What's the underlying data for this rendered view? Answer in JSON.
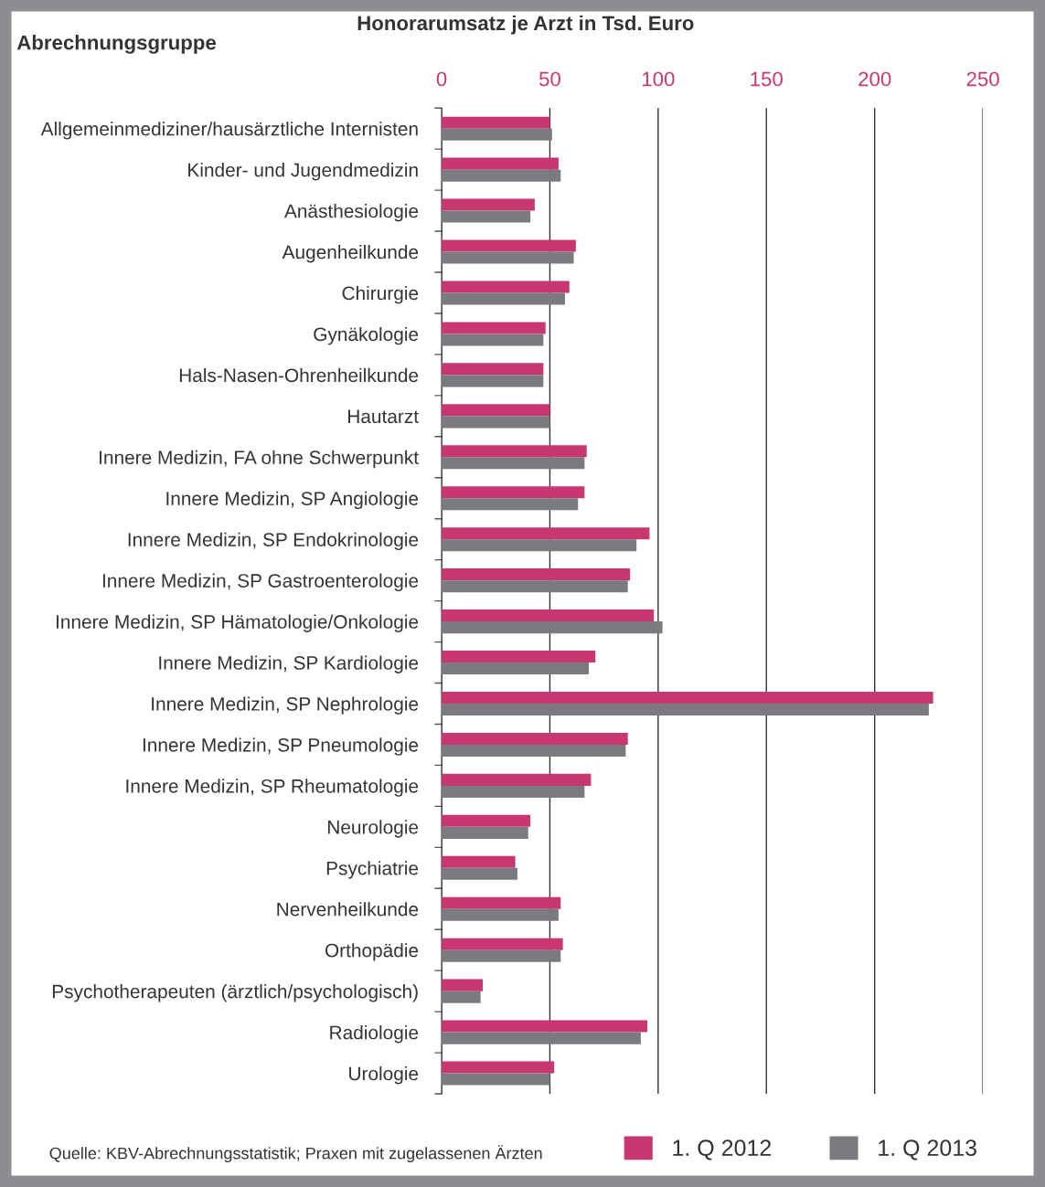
{
  "chart_data": {
    "type": "bar",
    "orientation": "horizontal",
    "xlabel": "Honorarumsatz je Arzt in Tsd. Euro",
    "ylabel": "Abrechnungsgruppe",
    "categories": [
      "Allgemeinmediziner/hausärztliche Internisten",
      "Kinder- und Jugendmedizin",
      "Anästhesiologie",
      "Augenheilkunde",
      "Chirurgie",
      "Gynäkologie",
      "Hals-Nasen-Ohrenheilkunde",
      "Hautarzt",
      "Innere Medizin, FA ohne Schwerpunkt",
      "Innere Medizin, SP Angiologie",
      "Innere Medizin, SP Endokrinologie",
      "Innere Medizin, SP Gastroenterologie",
      "Innere Medizin, SP Hämatologie/Onkologie",
      "Innere Medizin, SP Kardiologie",
      "Innere Medizin, SP Nephrologie",
      "Innere Medizin, SP Pneumologie",
      "Innere Medizin, SP Rheumatologie",
      "Neurologie",
      "Psychiatrie",
      "Nervenheilkunde",
      "Orthopädie",
      "Psychotherapeuten (ärztlich/psychologisch)",
      "Radiologie",
      "Urologie"
    ],
    "series": [
      {
        "name": "1. Q 2012",
        "color": "#c8376f",
        "values": [
          50,
          54,
          43,
          62,
          59,
          48,
          47,
          50,
          67,
          66,
          96,
          87,
          98,
          71,
          227,
          86,
          69,
          41,
          34,
          55,
          56,
          19,
          95,
          52
        ]
      },
      {
        "name": "1. Q 2013",
        "color": "#7a7b7f",
        "values": [
          51,
          55,
          41,
          61,
          57,
          47,
          47,
          50,
          66,
          63,
          90,
          86,
          102,
          68,
          225,
          85,
          66,
          40,
          35,
          54,
          55,
          18,
          92,
          50
        ]
      }
    ],
    "xlim": [
      0,
      250
    ],
    "xticks": [
      0,
      50,
      100,
      150,
      200,
      250
    ],
    "grid": "x",
    "legend": "bottom",
    "annotations": [
      "Quelle: KBV-Abrechnungsstatistik; Praxen mit zugelassenen Ärzten"
    ]
  }
}
